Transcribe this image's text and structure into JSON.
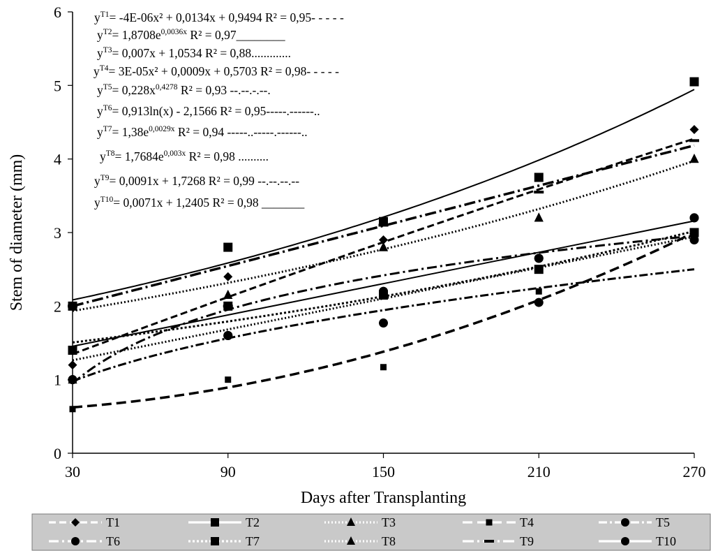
{
  "chart_data": {
    "type": "scatter",
    "xlabel": "Days after Transplanting",
    "ylabel": "Stem of diameter (mm)",
    "x": [
      30,
      90,
      150,
      210,
      270
    ],
    "xlim": [
      30,
      270
    ],
    "ylim": [
      0,
      6
    ],
    "x_ticks": [
      "30",
      "90",
      "150",
      "210",
      "270"
    ],
    "y_ticks": [
      "0",
      "1",
      "2",
      "3",
      "4",
      "5",
      "6"
    ],
    "legend_placement": "bottom",
    "series": [
      {
        "name": "T1",
        "marker": "diamond",
        "values": [
          1.2,
          2.4,
          2.9,
          2.65,
          4.4
        ],
        "trend": {
          "type": "poly2",
          "a": -4e-06,
          "b": 0.0134,
          "c": 0.9494
        },
        "equation": {
          "pre": "y",
          "sup": "T1",
          "text": "= -4E-06x² + 0,0134x + 0,9494 R² = 0,95- - - - -"
        }
      },
      {
        "name": "T2",
        "marker": "square",
        "values": [
          1.4,
          2.0,
          2.15,
          2.5,
          3.0
        ],
        "trend": {
          "type": "exp",
          "a": 1.8708,
          "b": 0.0036
        },
        "equation": {
          "pre": "y",
          "sup": "T2",
          "text": "= 1,8708e",
          "exp": "0,0036x",
          "post": " R² = 0,97________"
        }
      },
      {
        "name": "T3",
        "marker": "triangle",
        "values": [
          1.0,
          2.15,
          2.8,
          3.2,
          4.0
        ],
        "trend": {
          "type": "linear",
          "a": 0.007,
          "b": 1.0534
        },
        "equation": {
          "pre": "y",
          "sup": "T3",
          "text": "= 0,007x + 1,0534 R² = 0,88............."
        }
      },
      {
        "name": "T4",
        "marker": "small-square",
        "values": [
          0.6,
          1.0,
          1.17,
          2.2,
          2.9
        ],
        "trend": {
          "type": "poly2",
          "a": 3e-05,
          "b": 0.0009,
          "c": 0.5703
        },
        "equation": {
          "pre": "y",
          "sup": "T4",
          "text": "= 3E-05x² + 0,0009x + 0,5703 R² = 0,98- - - - -"
        }
      },
      {
        "name": "T5",
        "marker": "circle",
        "values": [
          1.0,
          1.6,
          1.77,
          2.05,
          2.9
        ],
        "trend": {
          "type": "power",
          "a": 0.228,
          "b": 0.4278
        },
        "equation": {
          "pre": "y",
          "sup": "T5",
          "text": "= 0,228x",
          "exp": "0,4278",
          "post": " R² = 0,93 --.--.-.--."
        }
      },
      {
        "name": "T6",
        "marker": "circle",
        "values": [
          1.0,
          1.6,
          2.2,
          2.65,
          3.2
        ],
        "trend": {
          "type": "log",
          "a": 0.913,
          "b": -2.1566
        },
        "equation": {
          "pre": "y",
          "sup": "T6",
          "text": "= 0,913ln(x) - 2,1566 R² = 0,95-----.------.."
        }
      },
      {
        "name": "T7",
        "marker": "square",
        "values": [
          2.0,
          2.8,
          3.15,
          3.75,
          5.05
        ],
        "trend": {
          "type": "exp",
          "a": 1.38,
          "b": 0.0029
        },
        "equation": {
          "pre": "y",
          "sup": "T7",
          "text": "= 1,38e",
          "exp": "0,0029x",
          "post": " R² = 0,94 -----..-----.------.."
        }
      },
      {
        "name": "T8",
        "marker": "triangle",
        "values": [
          1.0,
          2.15,
          2.8,
          3.2,
          4.0
        ],
        "trend": {
          "type": "exp",
          "a": 1.7684,
          "b": 0.003
        },
        "equation": {
          "pre": "y",
          "sup": "T8",
          "text": "= 1,7684e",
          "exp": "0,003x",
          "post": " R² = 0,98 .........."
        }
      },
      {
        "name": "T9",
        "marker": "dash",
        "values": [
          2.0,
          2.0,
          3.1,
          3.55,
          4.25
        ],
        "trend": {
          "type": "linear",
          "a": 0.0091,
          "b": 1.7268
        },
        "equation": {
          "pre": "y",
          "sup": "T9",
          "text": "= 0,0091x + 1,7268 R² = 0,99 --.--.--.--"
        }
      },
      {
        "name": "T10",
        "marker": "circle",
        "values": [
          1.0,
          1.6,
          2.2,
          2.65,
          3.2
        ],
        "trend": {
          "type": "linear",
          "a": 0.0071,
          "b": 1.2405
        },
        "equation": {
          "pre": "y",
          "sup": "T10",
          "text": "= 0,0071x + 1,2405 R² = 0,98 _______"
        }
      }
    ]
  }
}
